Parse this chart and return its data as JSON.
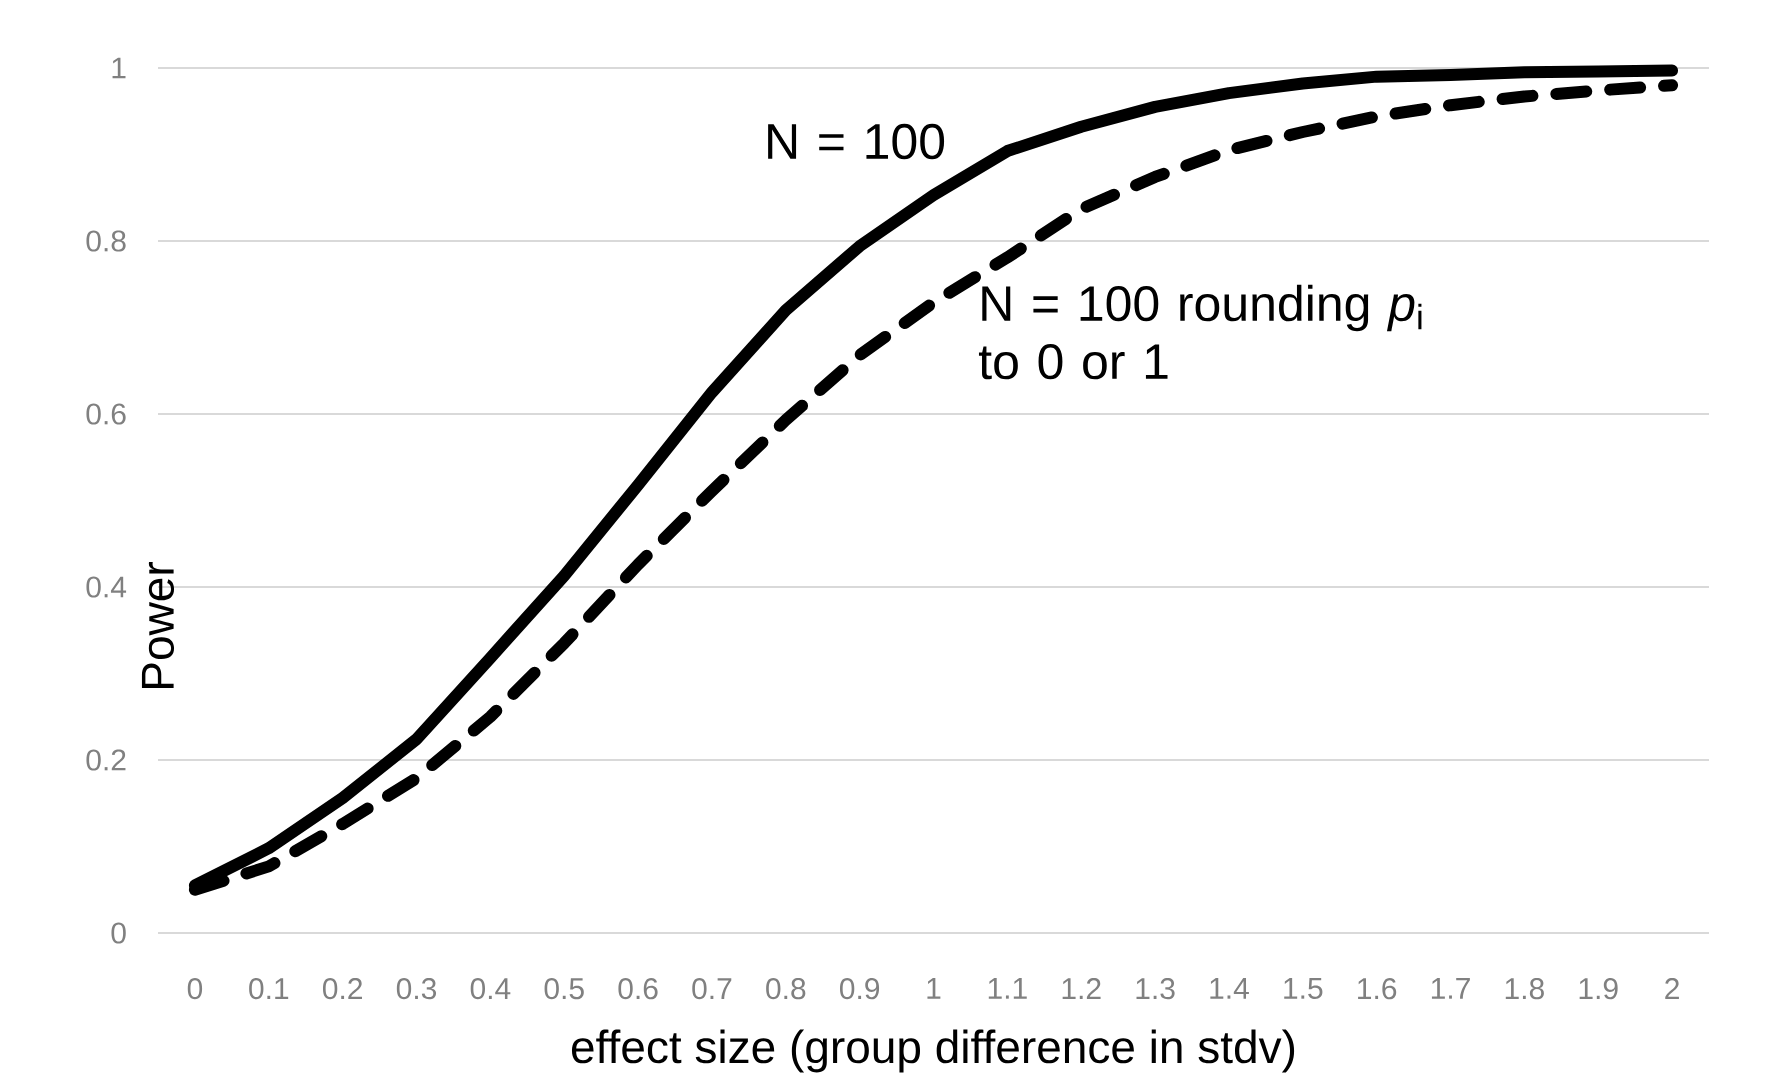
{
  "chart_data": {
    "type": "line",
    "xlabel": "effect size (group difference in stdv)",
    "ylabel": "Power",
    "categories": [
      "0",
      "0.1",
      "0.2",
      "0.3",
      "0.4",
      "0.5",
      "0.6",
      "0.7",
      "0.8",
      "0.9",
      "1",
      "1.1",
      "1.2",
      "1.3",
      "1.4",
      "1.5",
      "1.6",
      "1.7",
      "1.8",
      "1.9",
      "2"
    ],
    "ylim": [
      0,
      1
    ],
    "yticks": [
      0,
      0.2,
      0.4,
      0.6,
      0.8,
      1
    ],
    "grid": "y",
    "series": [
      {
        "name": "N = 100",
        "color": "#000000",
        "line_style": "solid",
        "values": [
          0.055,
          0.098,
          0.156,
          0.224,
          0.318,
          0.413,
          0.518,
          0.625,
          0.72,
          0.794,
          0.853,
          0.904,
          0.932,
          0.955,
          0.971,
          0.982,
          0.99,
          0.992,
          0.995,
          0.996,
          0.997
        ]
      },
      {
        "name": "N = 100 rounding *p*$_{i}$ to 0 or 1",
        "color": "#000000",
        "line_style": "dashed",
        "values": [
          0.05,
          0.077,
          0.126,
          0.179,
          0.25,
          0.335,
          0.426,
          0.511,
          0.593,
          0.668,
          0.729,
          0.781,
          0.837,
          0.874,
          0.905,
          0.926,
          0.944,
          0.957,
          0.967,
          0.974,
          0.98
        ]
      }
    ]
  }
}
